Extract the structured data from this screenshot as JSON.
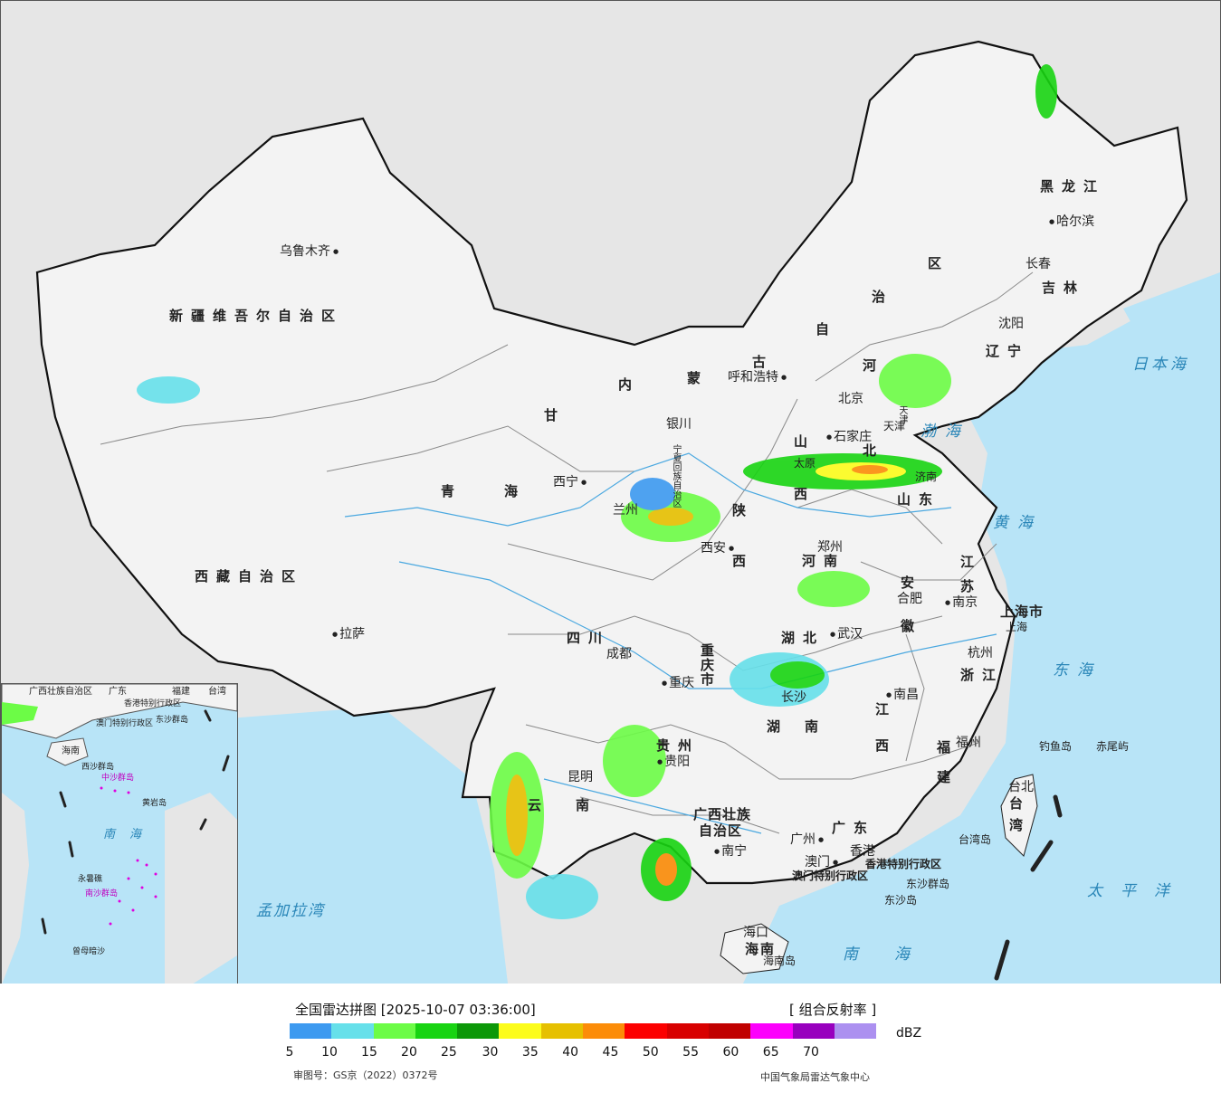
{
  "map": {
    "provinces": {
      "xinjiang": "新疆维吾尔自治区",
      "xizang": "西藏自治区",
      "qinghai_1": "青",
      "qinghai_2": "海",
      "gansu": "甘",
      "sichuan": "四川",
      "yunnan_1": "云",
      "yunnan_2": "南",
      "neimenggu_1": "内",
      "neimenggu_2": "蒙",
      "neimenggu_3": "古",
      "neimenggu_4": "自",
      "neimenggu_5": "治",
      "neimenggu_6": "区",
      "heilongjiang": "黑龙江",
      "jilin": "吉林",
      "liaoning": "辽宁",
      "hebei_1": "河",
      "hebei_2": "北",
      "shanxi_1": "山",
      "shanxi_2": "西",
      "shaanxi_1": "陕",
      "shaanxi_2": "西",
      "henan": "河南",
      "shandong": "山东",
      "jiangsu_1": "江",
      "jiangsu_2": "苏",
      "anhui_1": "安",
      "anhui_2": "徽",
      "hubei": "湖北",
      "hunan_1": "湖",
      "hunan_2": "南",
      "jiangxi_1": "江",
      "jiangxi_2": "西",
      "zhejiang": "浙江",
      "fujian_1": "福",
      "fujian_2": "建",
      "guizhou": "贵州",
      "guangxi_1": "广西壮族",
      "guangxi_2": "自治区",
      "guangdong": "广东",
      "hainan": "海南",
      "taiwan_1": "台",
      "taiwan_2": "湾",
      "chongqing": "重庆市",
      "shanghai": "上海市",
      "hk_sar": "香港特别行政区",
      "macau_sar": "澳门特别行政区",
      "ningxia": "宁夏回族自治区",
      "beijing_city": "北京",
      "tianjin": "天津"
    },
    "cities": {
      "urumqi": "乌鲁木齐",
      "lhasa": "拉萨",
      "xining": "西宁",
      "lanzhou": "兰州",
      "yinchuan": "银川",
      "huhehaote": "呼和浩特",
      "beijing": "北京",
      "tianjin": "天津",
      "shijiazhuang": "石家庄",
      "taiyuan": "太原",
      "jinan": "济南",
      "zhengzhou": "郑州",
      "xian": "西安",
      "chengdu": "成都",
      "chongqing": "重庆",
      "guiyang": "贵阳",
      "kunming": "昆明",
      "nanning": "南宁",
      "guangzhou": "广州",
      "hongkong": "香港",
      "macau": "澳门",
      "haikou": "海口",
      "changsha": "长沙",
      "wuhan": "武汉",
      "nanchang": "南昌",
      "fuzhou": "福州",
      "taibei": "台北",
      "hangzhou": "杭州",
      "shanghai": "上海",
      "nanjing": "南京",
      "hefei": "合肥",
      "shenyang": "沈阳",
      "changchun": "长春",
      "haerbin": "哈尔滨"
    },
    "islands": {
      "diaoyu": "钓鱼岛",
      "chiwei": "赤尾屿",
      "dongsha_islands": "东沙群岛",
      "dongsha": "东沙岛",
      "taiwan_island": "台湾岛",
      "hainan_island": "海南岛"
    },
    "seas": {
      "bohai": "渤海",
      "huanghai": "黄海",
      "donghai": "东海",
      "nanhai": "南海",
      "taipingyang": "太平洋",
      "ribenhai": "日本海",
      "mengjialawan": "孟加拉湾"
    },
    "inset": {
      "nanhai": "南海",
      "labels": [
        "广西壮族自治区",
        "广东",
        "福建",
        "台湾",
        "香港特别行政区",
        "澳门特别行政区",
        "东沙群岛",
        "海南",
        "西沙群岛",
        "中沙群岛",
        "南沙群岛",
        "黄岩岛",
        "曾母暗沙",
        "永暑礁"
      ]
    },
    "colors": {
      "land": "#f3f3f3",
      "neighbor": "#e6e6e6",
      "sea": "#b8e4f7",
      "border": "#111111",
      "province_border": "#8a8a8a",
      "river": "#4aa8e0"
    }
  },
  "legend": {
    "title": "全国雷达拼图 [2025-10-07 03:36:00]",
    "product": "[ 组合反射率 ]",
    "unit": "dBZ",
    "ticks": [
      "5",
      "10",
      "15",
      "20",
      "25",
      "30",
      "35",
      "40",
      "45",
      "50",
      "55",
      "60",
      "65",
      "70"
    ],
    "colors": [
      "#3d9af0",
      "#66e0ea",
      "#6cfc46",
      "#18d412",
      "#0c9808",
      "#fcfc1c",
      "#e6c000",
      "#fc8c08",
      "#fc0000",
      "#d80000",
      "#c00000",
      "#fc00fc",
      "#9800be",
      "#ac90f0"
    ],
    "approval": "审图号：GS京（2022）0372号",
    "agency": "中国气象局雷达气象中心"
  }
}
